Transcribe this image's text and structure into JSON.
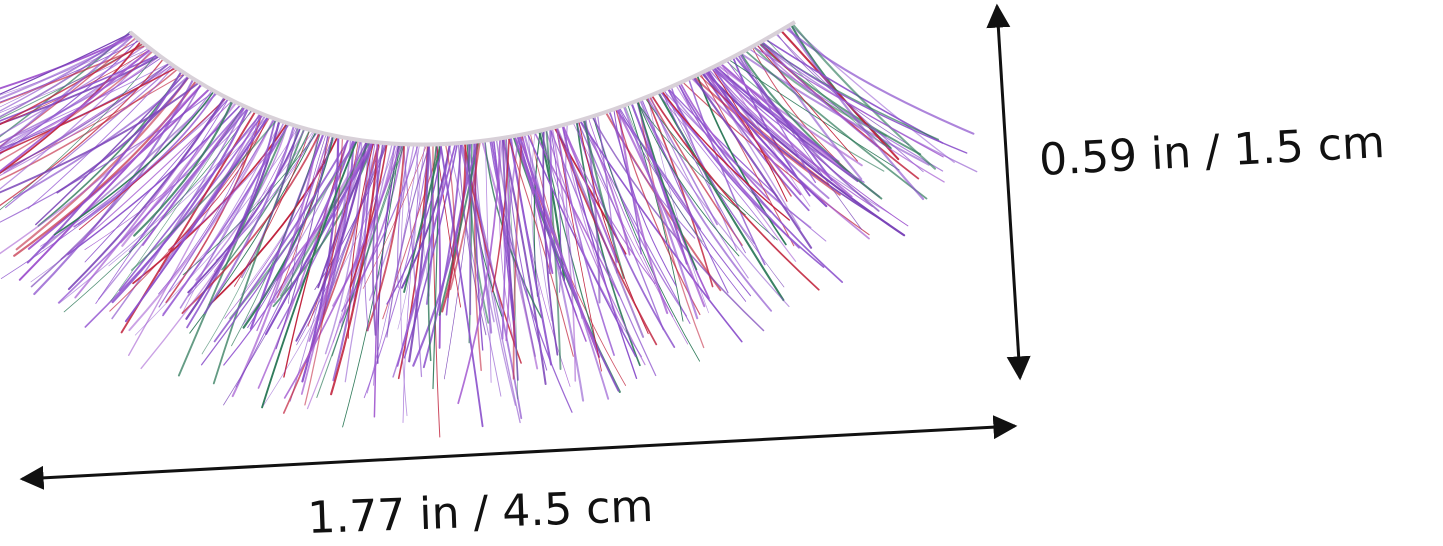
{
  "dimensions": {
    "height": "0.59 in / 1.5 cm",
    "width": "1.77 in / 4.5 cm"
  }
}
